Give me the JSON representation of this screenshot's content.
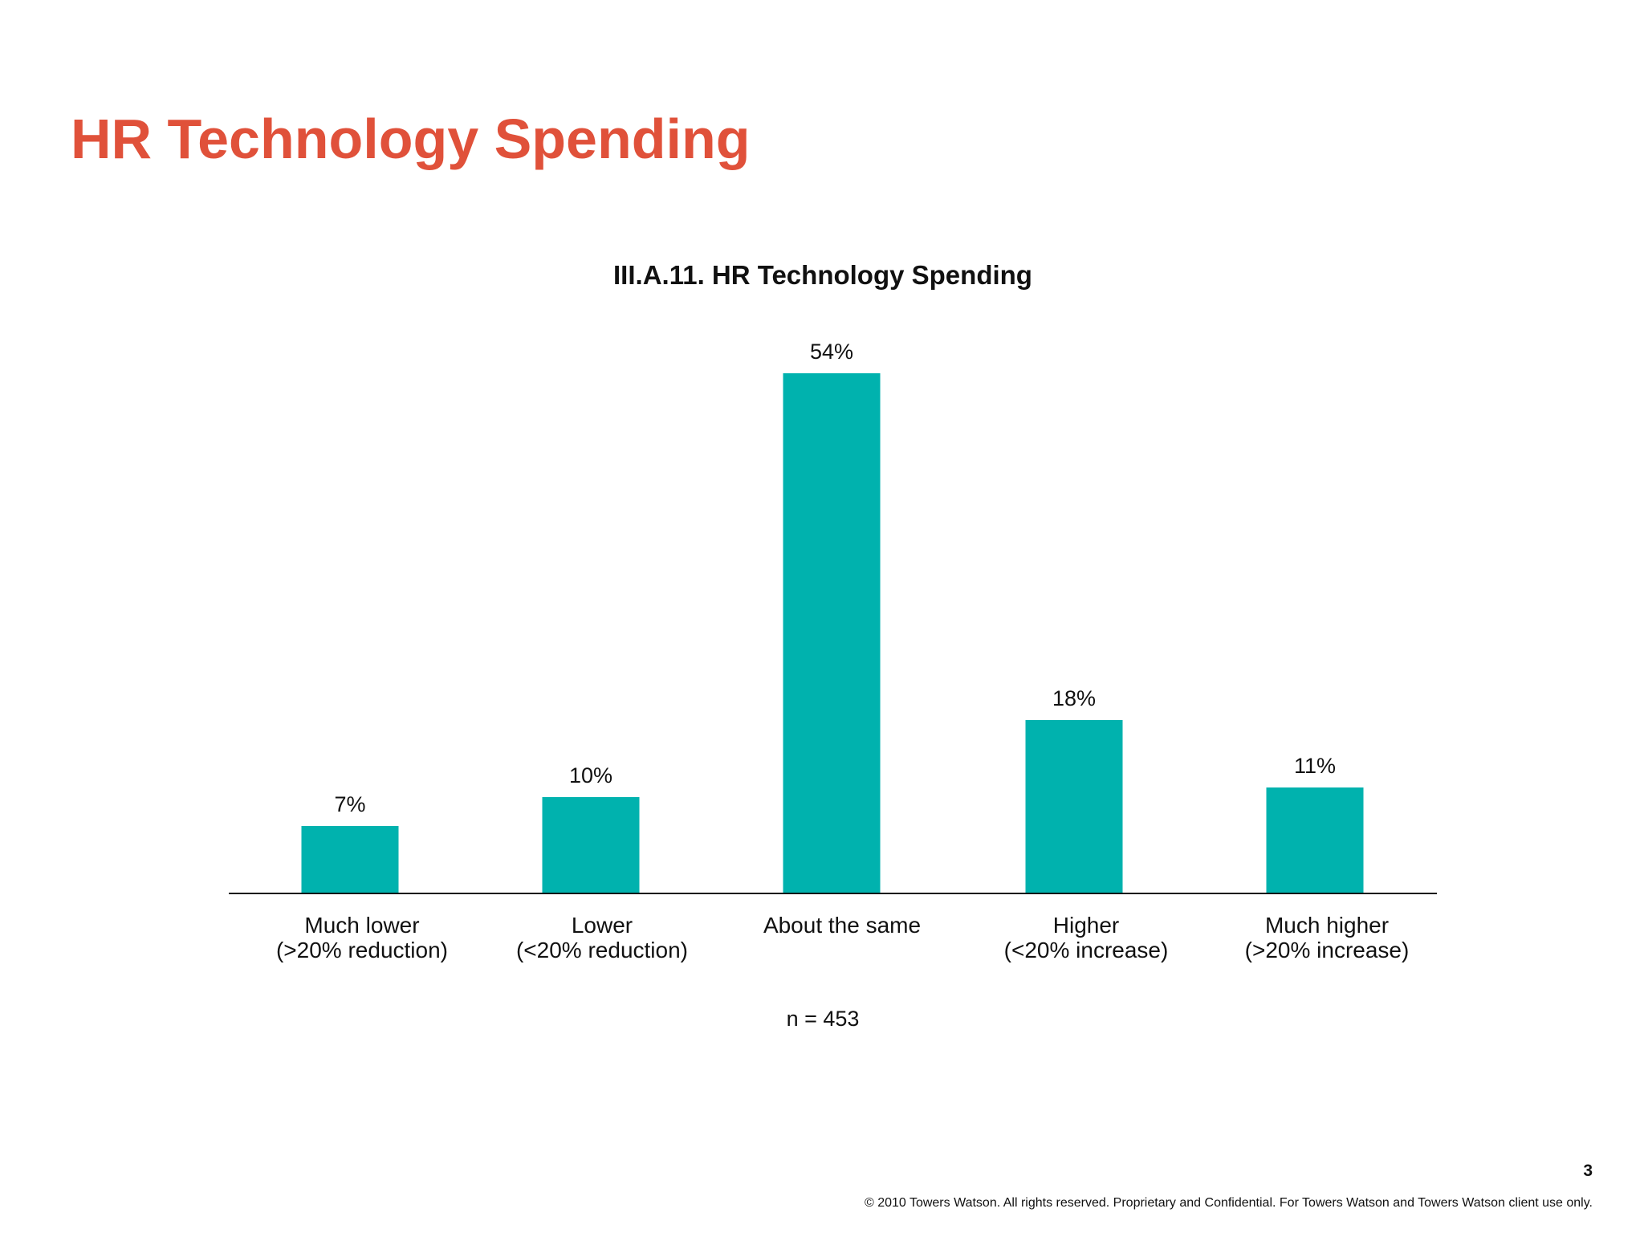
{
  "slide": {
    "title": "HR Technology Spending",
    "page_number": "3",
    "footer": "© 2010 Towers Watson. All rights reserved. Proprietary and Confidential. For Towers Watson and Towers Watson client use only."
  },
  "colors": {
    "title": "#e0513a",
    "bar": "#00b2ae",
    "axis": "#111111"
  },
  "chart_data": {
    "type": "bar",
    "title": "III.A.11. HR Technology Spending",
    "categories": [
      [
        "Much lower",
        "(>20% reduction)"
      ],
      [
        "Lower",
        "(<20% reduction)"
      ],
      [
        "About the same"
      ],
      [
        "Higher",
        "(<20% increase)"
      ],
      [
        "Much higher",
        "(>20% increase)"
      ]
    ],
    "values": [
      7,
      10,
      54,
      18,
      11
    ],
    "value_labels": [
      "7%",
      "10%",
      "54%",
      "18%",
      "11%"
    ],
    "note": "n = 453",
    "xlabel": "",
    "ylabel": "",
    "ylim": [
      0,
      54
    ],
    "grid": false,
    "legend": false
  }
}
